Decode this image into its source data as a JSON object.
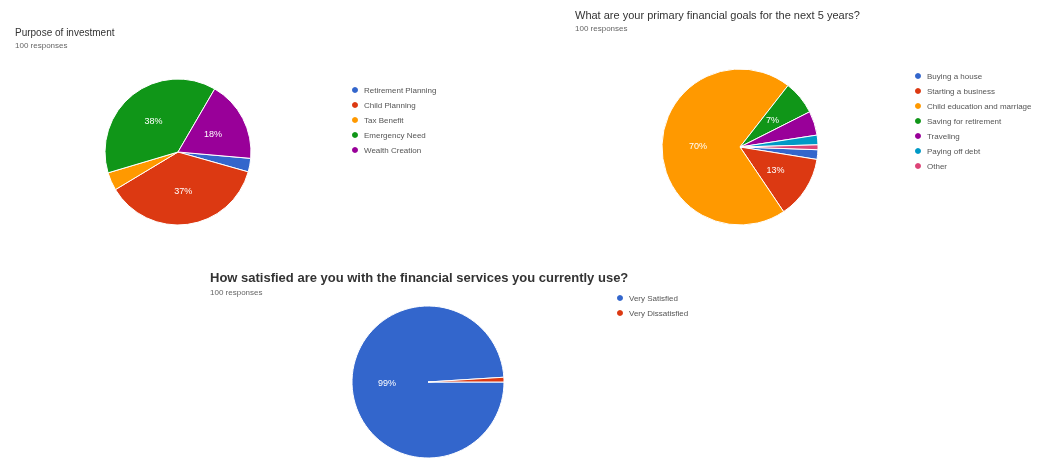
{
  "chart_data": [
    {
      "type": "pie",
      "title": "Purpose of investment",
      "subtitle": "100 responses",
      "categories": [
        "Retirement Planning",
        "Child Planning",
        "Tax Benefit",
        "Emergency Need",
        "Wealth Creation"
      ],
      "values": [
        3,
        37,
        4,
        38,
        18
      ],
      "colors": [
        "#3366cc",
        "#dc3912",
        "#ff9900",
        "#109618",
        "#990099"
      ],
      "value_labels": [
        null,
        "37%",
        null,
        "38%",
        "18%"
      ],
      "legend": "right"
    },
    {
      "type": "pie",
      "title": "What are your primary financial goals for the next 5 years?",
      "subtitle": "100 responses",
      "categories": [
        "Buying a house",
        "Starting a business",
        "Child education and marriage",
        "Saving for retirement",
        "Traveling",
        "Paying off debt",
        "Other"
      ],
      "values": [
        2,
        13,
        70,
        7,
        5,
        2,
        1
      ],
      "colors": [
        "#3366cc",
        "#dc3912",
        "#ff9900",
        "#109618",
        "#990099",
        "#0099c6",
        "#dd4477"
      ],
      "value_labels": [
        null,
        "13%",
        "70%",
        "7%",
        null,
        null,
        null
      ],
      "legend": "right"
    },
    {
      "type": "pie",
      "title": "How satisfied are you with the financial services you currently use?",
      "subtitle": "100 responses",
      "categories": [
        "Very Satisfied",
        "Very Dissatisfied"
      ],
      "values": [
        99,
        1
      ],
      "colors": [
        "#3366cc",
        "#dc3912"
      ],
      "value_labels": [
        "99%",
        null
      ],
      "legend": "right"
    }
  ]
}
